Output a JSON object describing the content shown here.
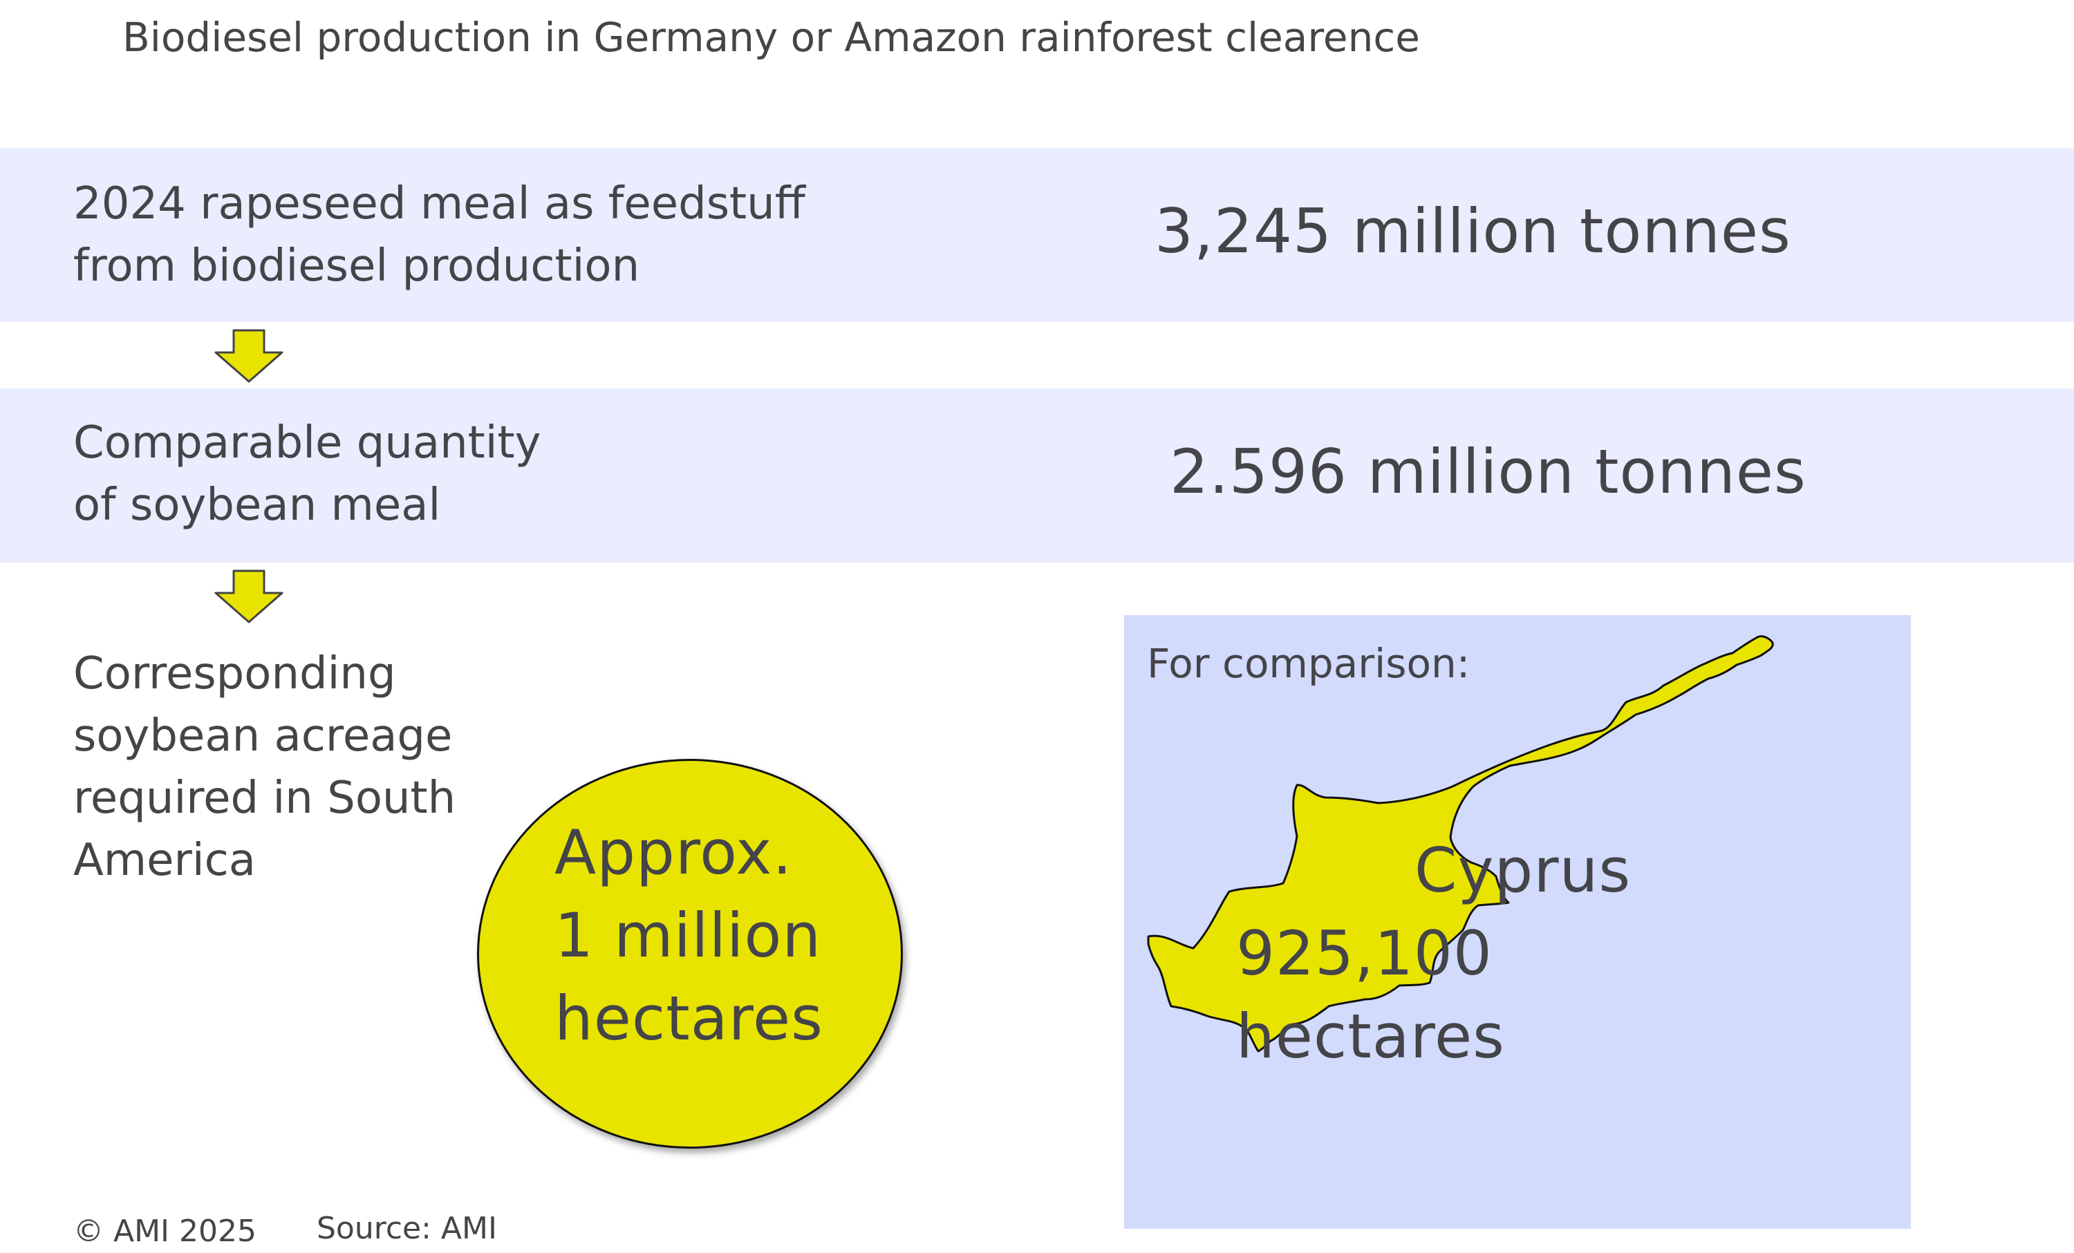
{
  "title": "Biodiesel production in Germany or Amazon rainforest clearence",
  "rows": [
    {
      "label_line1": "2024 rapeseed meal as feedstuff",
      "label_line2": "from biodiesel production",
      "value": "3,245 million tonnes"
    },
    {
      "label_line1": "Comparable quantity",
      "label_line2": "of soybean meal",
      "value": "2.596 million tonnes"
    }
  ],
  "acreage": {
    "label_lines": [
      "Corresponding",
      "soybean acreage",
      "required in South",
      "America"
    ],
    "value_lines": [
      "Approx.",
      "1 million",
      "hectares"
    ]
  },
  "comparison": {
    "label": "For comparison:",
    "country": "Cyprus",
    "area_lines": [
      "925,100",
      "hectares"
    ]
  },
  "footer": {
    "copyright": "© AMI 2025",
    "source": "Source: AMI"
  },
  "colors": {
    "band": "#e9edfd",
    "accent_yellow": "#e8e400",
    "comparison_background": "#d2dbfc",
    "text": "#444449"
  },
  "icons": [
    "arrow-down-icon",
    "arrow-down-icon",
    "cyprus-map-icon"
  ]
}
